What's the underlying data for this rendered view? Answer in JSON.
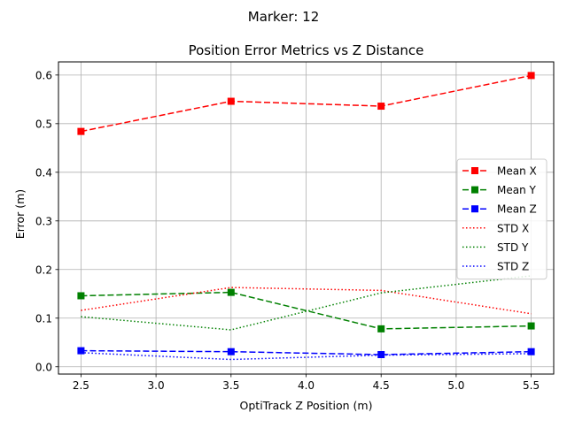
{
  "suptitle": "Marker: 12",
  "chart_data": {
    "type": "line",
    "title": "Position Error Metrics vs Z Distance",
    "xlabel": "OptiTrack Z Position (m)",
    "ylabel": "Error (m)",
    "x": [
      2.5,
      3.5,
      4.5,
      5.5
    ],
    "xlim": [
      2.35,
      5.65
    ],
    "ylim": [
      -0.015,
      0.627
    ],
    "xticks": [
      "2.5",
      "3.0",
      "3.5",
      "4.0",
      "4.5",
      "5.0",
      "5.5"
    ],
    "yticks": [
      "0.0",
      "0.1",
      "0.2",
      "0.3",
      "0.4",
      "0.5",
      "0.6"
    ],
    "grid": true,
    "legend_position": "center-right",
    "series": [
      {
        "name": "Mean X",
        "values": [
          0.484,
          0.546,
          0.536,
          0.599
        ],
        "color": "#ff0000",
        "style": "dashed",
        "marker": "square"
      },
      {
        "name": "Mean Y",
        "values": [
          0.146,
          0.153,
          0.078,
          0.084
        ],
        "color": "#008000",
        "style": "dashed",
        "marker": "square"
      },
      {
        "name": "Mean Z",
        "values": [
          0.033,
          0.031,
          0.025,
          0.031
        ],
        "color": "#0000ff",
        "style": "dashed",
        "marker": "square"
      },
      {
        "name": "STD X",
        "values": [
          0.116,
          0.163,
          0.157,
          0.109
        ],
        "color": "#ff0000",
        "style": "dotted",
        "marker": "none"
      },
      {
        "name": "STD Y",
        "values": [
          0.103,
          0.076,
          0.152,
          0.187
        ],
        "color": "#008000",
        "style": "dotted",
        "marker": "none"
      },
      {
        "name": "STD Z",
        "values": [
          0.029,
          0.015,
          0.024,
          0.027
        ],
        "color": "#0000ff",
        "style": "dotted",
        "marker": "none"
      }
    ]
  }
}
